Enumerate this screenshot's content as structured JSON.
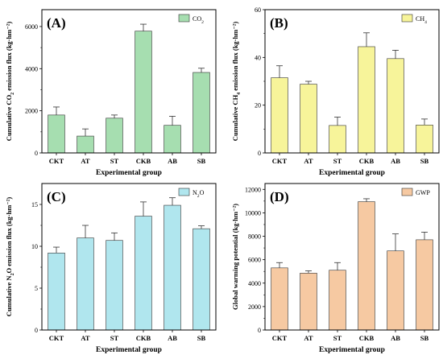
{
  "chart_data": [
    {
      "type": "bar",
      "panel_label": "(A)",
      "categories": [
        "CKT",
        "AT",
        "ST",
        "CKB",
        "AB",
        "SB"
      ],
      "series": [
        {
          "name": "CO₂",
          "values": [
            1800,
            800,
            1650,
            5780,
            1310,
            3820
          ],
          "errors": [
            380,
            340,
            150,
            330,
            430,
            200
          ]
        }
      ],
      "xlabel": "Experimental group",
      "ylabel": "Cumulative CO₂ emission flux (kg·hm⁻²)",
      "ylim": [
        0,
        6800
      ],
      "yticks": [
        0,
        2000,
        4000,
        6000
      ],
      "color": "#a6deb0",
      "legend_position": "top-right",
      "grid": false
    },
    {
      "type": "bar",
      "panel_label": "(B)",
      "categories": [
        "CKT",
        "AT",
        "ST",
        "CKB",
        "AB",
        "SB"
      ],
      "series": [
        {
          "name": "CH₄",
          "values": [
            31.5,
            28.8,
            11.5,
            44.5,
            39.5,
            11.7
          ],
          "errors": [
            5.0,
            1.2,
            3.5,
            5.8,
            3.5,
            2.5
          ]
        }
      ],
      "xlabel": "Experimental group",
      "ylabel": "Cumulative CH₄ emission flux (kg·hm⁻²)",
      "ylim": [
        0,
        60
      ],
      "yticks": [
        0,
        20,
        40,
        60
      ],
      "color": "#f7f49a",
      "legend_position": "top-right",
      "grid": false
    },
    {
      "type": "bar",
      "panel_label": "(C)",
      "categories": [
        "CKT",
        "AT",
        "ST",
        "CKB",
        "AB",
        "SB"
      ],
      "series": [
        {
          "name": "N₂O",
          "values": [
            9.2,
            11.0,
            10.7,
            13.6,
            14.9,
            12.1
          ],
          "errors": [
            0.7,
            1.5,
            0.9,
            1.7,
            0.9,
            0.35
          ]
        }
      ],
      "xlabel": "Experimental group",
      "ylabel": "Cumulative N₂O emission flux (kg·hm⁻²)",
      "ylim": [
        0,
        17.5
      ],
      "yticks": [
        0,
        5,
        10,
        15
      ],
      "color": "#b0e6ee",
      "legend_position": "top-right",
      "grid": false
    },
    {
      "type": "bar",
      "panel_label": "(D)",
      "categories": [
        "CKT",
        "AT",
        "ST",
        "CKB",
        "AB",
        "SB"
      ],
      "series": [
        {
          "name": "GWP",
          "values": [
            5300,
            4850,
            5100,
            10950,
            6750,
            7700
          ],
          "errors": [
            450,
            200,
            650,
            250,
            1450,
            650
          ]
        }
      ],
      "xlabel": "Experimental group",
      "ylabel": "Global warming potential (kg·hm⁻²)",
      "ylim": [
        0,
        12500
      ],
      "yticks": [
        0,
        2000,
        4000,
        6000,
        8000,
        10000,
        12000
      ],
      "color": "#f6c9a2",
      "legend_position": "top-right",
      "grid": false
    }
  ]
}
